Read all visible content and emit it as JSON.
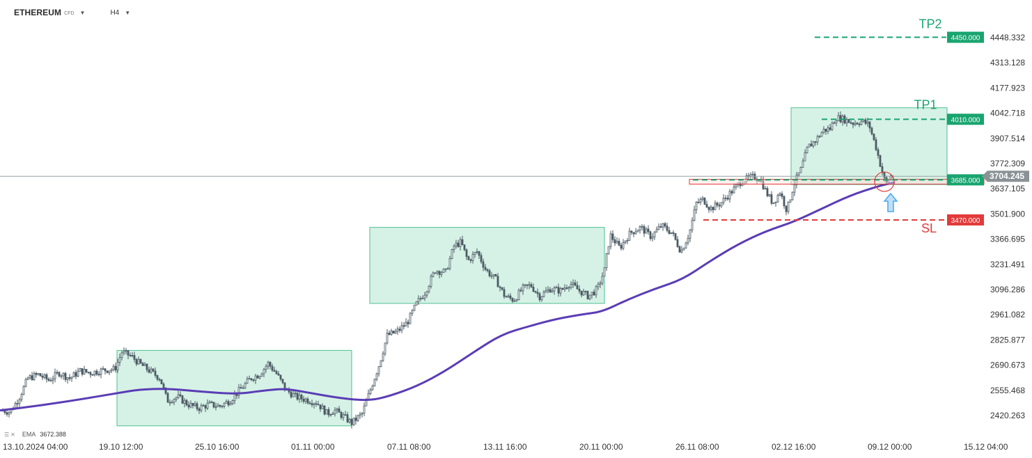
{
  "header": {
    "symbol": "ETHEREUM",
    "symbol_type": "CFD",
    "timeframe": "H4"
  },
  "indicator": {
    "name": "EMA",
    "value": "3672.388"
  },
  "colors": {
    "ema": "#5a3db5",
    "zone_fill": "#d6f2e6",
    "zone_border": "#4fbf93",
    "target": "#19a46f",
    "stop": "#e23a3a",
    "candle": "#4a5a63",
    "current_price_tag": "#8a9296",
    "arrow": "#49a6ee"
  },
  "chart_data": {
    "type": "candlestick",
    "symbol": "ETHEREUM",
    "timeframe": "H4",
    "ylim": [
      2330,
      4520
    ],
    "xlim": [
      0,
      1485
    ],
    "y_ticks": [
      {
        "label": "4448.332",
        "value": 4448.332
      },
      {
        "label": "4313.128",
        "value": 4313.128
      },
      {
        "label": "4177.923",
        "value": 4177.923
      },
      {
        "label": "4042.718",
        "value": 4042.718
      },
      {
        "label": "3907.514",
        "value": 3907.514
      },
      {
        "label": "3772.309",
        "value": 3772.309
      },
      {
        "label": "3637.105",
        "value": 3637.105
      },
      {
        "label": "3501.900",
        "value": 3501.9
      },
      {
        "label": "3366.695",
        "value": 3366.695
      },
      {
        "label": "3231.491",
        "value": 3231.491
      },
      {
        "label": "3096.286",
        "value": 3096.286
      },
      {
        "label": "2961.082",
        "value": 2961.082
      },
      {
        "label": "2825.877",
        "value": 2825.877
      },
      {
        "label": "2690.673",
        "value": 2690.673
      },
      {
        "label": "2555.468",
        "value": 2555.468
      },
      {
        "label": "2420.263",
        "value": 2420.263
      }
    ],
    "x_ticks": [
      {
        "label": "13.10.2024  04:00",
        "x": 0
      },
      {
        "label": "19.10  12:00",
        "x": 138
      },
      {
        "label": "25.10  16:00",
        "x": 276
      },
      {
        "label": "01.11  00:00",
        "x": 414
      },
      {
        "label": "07.11  08:00",
        "x": 552
      },
      {
        "label": "13.11  16:00",
        "x": 690
      },
      {
        "label": "20.11  00:00",
        "x": 828
      },
      {
        "label": "26.11  08:00",
        "x": 966
      },
      {
        "label": "02.12  16:00",
        "x": 1104
      },
      {
        "label": "09.12  00:00",
        "x": 1242
      },
      {
        "label": "15.12  04:00",
        "x": 1380
      }
    ],
    "current_price": {
      "label": "3704.245",
      "value": 3704.245
    },
    "levels": [
      {
        "label": "TP2",
        "tag": "4450.000",
        "value": 4450.0,
        "x_from": 1170,
        "kind": "target"
      },
      {
        "label": "TP1",
        "tag": "4010.000",
        "value": 4010.0,
        "x_from": 1180,
        "kind": "target"
      },
      {
        "label": "",
        "tag": "3685.000",
        "value": 3685.0,
        "x_from": 995,
        "kind": "entry"
      },
      {
        "label": "SL",
        "tag": "3470.000",
        "value": 3470.0,
        "x_from": 1010,
        "kind": "stop"
      }
    ],
    "zones": [
      {
        "x0": 168,
        "x1": 505,
        "y_low": 2365,
        "y_high": 2770
      },
      {
        "x0": 531,
        "x1": 868,
        "y_low": 3022,
        "y_high": 3430
      },
      {
        "x0": 1136,
        "x1": 1360,
        "y_low": 3660,
        "y_high": 4072
      }
    ],
    "entry_box": {
      "x0": 990,
      "x1": 1413,
      "y_low": 3662,
      "y_high": 3688
    },
    "signal": {
      "x": 1270,
      "price": 3675
    },
    "ema_path": [
      [
        0,
        2448
      ],
      [
        60,
        2475
      ],
      [
        120,
        2510
      ],
      [
        168,
        2540
      ],
      [
        200,
        2560
      ],
      [
        240,
        2565
      ],
      [
        290,
        2548
      ],
      [
        340,
        2535
      ],
      [
        380,
        2555
      ],
      [
        410,
        2565
      ],
      [
        440,
        2545
      ],
      [
        490,
        2512
      ],
      [
        530,
        2500
      ],
      [
        560,
        2525
      ],
      [
        600,
        2580
      ],
      [
        640,
        2660
      ],
      [
        680,
        2760
      ],
      [
        720,
        2855
      ],
      [
        760,
        2900
      ],
      [
        800,
        2940
      ],
      [
        840,
        2965
      ],
      [
        865,
        2978
      ],
      [
        900,
        3040
      ],
      [
        940,
        3100
      ],
      [
        980,
        3150
      ],
      [
        1020,
        3250
      ],
      [
        1060,
        3340
      ],
      [
        1100,
        3410
      ],
      [
        1140,
        3460
      ],
      [
        1180,
        3530
      ],
      [
        1220,
        3600
      ],
      [
        1260,
        3650
      ],
      [
        1285,
        3672
      ]
    ],
    "price_path": [
      [
        0,
        2450
      ],
      [
        15,
        2440
      ],
      [
        28,
        2520
      ],
      [
        40,
        2620
      ],
      [
        55,
        2640
      ],
      [
        70,
        2610
      ],
      [
        85,
        2650
      ],
      [
        100,
        2620
      ],
      [
        115,
        2660
      ],
      [
        130,
        2650
      ],
      [
        150,
        2665
      ],
      [
        165,
        2670
      ],
      [
        175,
        2760
      ],
      [
        188,
        2740
      ],
      [
        200,
        2700
      ],
      [
        215,
        2660
      ],
      [
        230,
        2620
      ],
      [
        240,
        2500
      ],
      [
        255,
        2520
      ],
      [
        270,
        2480
      ],
      [
        285,
        2460
      ],
      [
        300,
        2480
      ],
      [
        315,
        2470
      ],
      [
        330,
        2500
      ],
      [
        345,
        2560
      ],
      [
        360,
        2620
      ],
      [
        372,
        2640
      ],
      [
        385,
        2700
      ],
      [
        398,
        2640
      ],
      [
        410,
        2560
      ],
      [
        425,
        2520
      ],
      [
        440,
        2505
      ],
      [
        455,
        2490
      ],
      [
        470,
        2430
      ],
      [
        480,
        2450
      ],
      [
        495,
        2410
      ],
      [
        505,
        2380
      ],
      [
        520,
        2430
      ],
      [
        532,
        2560
      ],
      [
        545,
        2700
      ],
      [
        556,
        2850
      ],
      [
        570,
        2870
      ],
      [
        585,
        2920
      ],
      [
        598,
        3020
      ],
      [
        610,
        3080
      ],
      [
        625,
        3200
      ],
      [
        640,
        3190
      ],
      [
        652,
        3330
      ],
      [
        662,
        3350
      ],
      [
        672,
        3250
      ],
      [
        685,
        3300
      ],
      [
        698,
        3200
      ],
      [
        712,
        3150
      ],
      [
        725,
        3060
      ],
      [
        738,
        3040
      ],
      [
        750,
        3100
      ],
      [
        762,
        3120
      ],
      [
        775,
        3060
      ],
      [
        790,
        3100
      ],
      [
        805,
        3090
      ],
      [
        818,
        3130
      ],
      [
        832,
        3090
      ],
      [
        845,
        3060
      ],
      [
        858,
        3100
      ],
      [
        868,
        3200
      ],
      [
        876,
        3390
      ],
      [
        890,
        3320
      ],
      [
        905,
        3400
      ],
      [
        920,
        3430
      ],
      [
        935,
        3380
      ],
      [
        950,
        3440
      ],
      [
        965,
        3400
      ],
      [
        978,
        3300
      ],
      [
        990,
        3400
      ],
      [
        1000,
        3560
      ],
      [
        1010,
        3580
      ],
      [
        1020,
        3530
      ],
      [
        1035,
        3560
      ],
      [
        1050,
        3620
      ],
      [
        1065,
        3680
      ],
      [
        1080,
        3700
      ],
      [
        1092,
        3690
      ],
      [
        1100,
        3620
      ],
      [
        1110,
        3560
      ],
      [
        1120,
        3620
      ],
      [
        1130,
        3520
      ],
      [
        1140,
        3660
      ],
      [
        1150,
        3740
      ],
      [
        1160,
        3860
      ],
      [
        1172,
        3900
      ],
      [
        1182,
        3950
      ],
      [
        1192,
        3960
      ],
      [
        1200,
        4020
      ],
      [
        1212,
        4010
      ],
      [
        1225,
        3990
      ],
      [
        1238,
        4000
      ],
      [
        1248,
        3980
      ],
      [
        1258,
        3860
      ],
      [
        1266,
        3740
      ],
      [
        1272,
        3660
      ],
      [
        1280,
        3710
      ],
      [
        1285,
        3704
      ]
    ]
  }
}
